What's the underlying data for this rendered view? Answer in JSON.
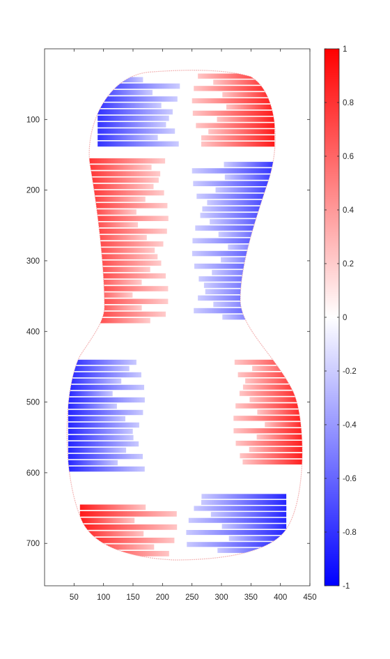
{
  "chart_data": {
    "type": "heatmap",
    "title": "",
    "xlabel": "",
    "ylabel": "",
    "xlim": [
      0,
      450
    ],
    "ylim": [
      760,
      0
    ],
    "x_ticks": [
      50,
      100,
      150,
      200,
      250,
      300,
      350,
      400,
      450
    ],
    "y_ticks": [
      100,
      200,
      300,
      400,
      500,
      600,
      700
    ],
    "grid": false,
    "colormap": {
      "low_color": "#0000ff",
      "mid_color": "#ffffff",
      "high_color": "#ff0000",
      "range": [
        -1,
        1
      ],
      "ticks": [
        1,
        0.8,
        0.6,
        0.4,
        0.2,
        0,
        -0.2,
        -0.4,
        -0.6,
        -0.8,
        -1
      ]
    },
    "regions": [
      {
        "name": "top-left",
        "value": -0.8,
        "x": [
          90,
          230
        ],
        "y": [
          40,
          140
        ]
      },
      {
        "name": "top-right",
        "value": 0.9,
        "x": [
          250,
          390
        ],
        "y": [
          35,
          140
        ]
      },
      {
        "name": "upper-left",
        "value": 0.8,
        "x": [
          75,
          210
        ],
        "y": [
          155,
          390
        ]
      },
      {
        "name": "upper-right",
        "value": -0.8,
        "x": [
          250,
          390
        ],
        "y": [
          160,
          385
        ]
      },
      {
        "name": "lower-left",
        "value": -0.85,
        "x": [
          40,
          170
        ],
        "y": [
          440,
          600
        ]
      },
      {
        "name": "lower-right",
        "value": 0.9,
        "x": [
          320,
          440
        ],
        "y": [
          440,
          590
        ]
      },
      {
        "name": "bottom-left",
        "value": 0.9,
        "x": [
          60,
          225
        ],
        "y": [
          645,
          720
        ]
      },
      {
        "name": "bottom-right",
        "value": -0.85,
        "x": [
          240,
          410
        ],
        "y": [
          630,
          715
        ]
      }
    ]
  }
}
